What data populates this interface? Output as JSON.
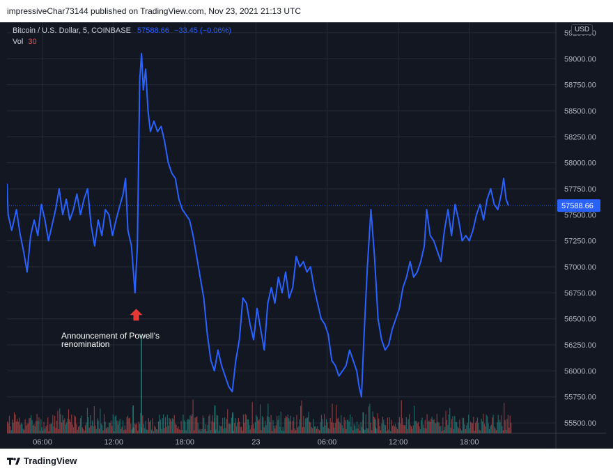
{
  "header": {
    "published_text": "impressiveChar73144 published on TradingView.com, Nov 23, 2021 21:13 UTC"
  },
  "legend": {
    "symbol": "Bitcoin / U.S. Dollar, 5, COINBASE",
    "last_price": "57588.66",
    "change": "−33.45 (−0.06%)",
    "vol_label": "Vol",
    "vol_value": "30"
  },
  "currency_button": "USD",
  "price_tag": "57588.66",
  "annotation": {
    "text": "Announcement of Powell's renomination",
    "icon": "arrow-up-icon"
  },
  "footer": {
    "brand": "TradingView",
    "logo_icon": "tradingview-logo-icon"
  },
  "colors": {
    "background": "#131722",
    "line": "#2962ff",
    "price_tag": "#2962ff",
    "arrow": "#e53935",
    "vol_up": "#26a69a",
    "vol_down": "#ef5350",
    "vol_value": "#ef5350"
  },
  "chart_data": {
    "type": "line",
    "ylim": [
      55400,
      59350
    ],
    "y_ticks": [
      55500,
      55750,
      56000,
      56250,
      56500,
      56750,
      57000,
      57250,
      57500,
      57750,
      58000,
      58250,
      58500,
      58750,
      59000,
      59250
    ],
    "y_tick_labels": [
      "55500.00",
      "55750.00",
      "56000.00",
      "56250.00",
      "56500.00",
      "56750.00",
      "57000.00",
      "57250.00",
      "57500.00",
      "57750.00",
      "58000.00",
      "58250.00",
      "58500.00",
      "58750.00",
      "59000.00",
      "59250.00"
    ],
    "x_domain_hours": [
      3,
      49.3
    ],
    "x_ticks": [
      {
        "label": "06:00",
        "hour": 6
      },
      {
        "label": "12:00",
        "hour": 12
      },
      {
        "label": "18:00",
        "hour": 18
      },
      {
        "label": "23",
        "hour": 24
      },
      {
        "label": "06:00",
        "hour": 30
      },
      {
        "label": "12:00",
        "hour": 36
      },
      {
        "label": "18:00",
        "hour": 42
      }
    ],
    "current_price": 57588.66,
    "series": [
      {
        "points": [
          [
            3.0,
            57800
          ],
          [
            3.1,
            57500
          ],
          [
            3.4,
            57350
          ],
          [
            3.8,
            57550
          ],
          [
            4.1,
            57320
          ],
          [
            4.4,
            57150
          ],
          [
            4.7,
            56950
          ],
          [
            5.0,
            57300
          ],
          [
            5.3,
            57450
          ],
          [
            5.6,
            57300
          ],
          [
            5.9,
            57600
          ],
          [
            6.2,
            57450
          ],
          [
            6.5,
            57250
          ],
          [
            6.8,
            57400
          ],
          [
            7.1,
            57550
          ],
          [
            7.4,
            57750
          ],
          [
            7.7,
            57500
          ],
          [
            8.0,
            57650
          ],
          [
            8.3,
            57450
          ],
          [
            8.6,
            57550
          ],
          [
            8.9,
            57700
          ],
          [
            9.2,
            57500
          ],
          [
            9.5,
            57650
          ],
          [
            9.8,
            57750
          ],
          [
            10.1,
            57400
          ],
          [
            10.4,
            57200
          ],
          [
            10.7,
            57450
          ],
          [
            11.0,
            57300
          ],
          [
            11.3,
            57550
          ],
          [
            11.6,
            57500
          ],
          [
            11.9,
            57300
          ],
          [
            12.2,
            57450
          ],
          [
            12.5,
            57580
          ],
          [
            12.8,
            57700
          ],
          [
            13.0,
            57850
          ],
          [
            13.2,
            57350
          ],
          [
            13.5,
            57200
          ],
          [
            13.8,
            56750
          ],
          [
            14.0,
            57200
          ],
          [
            14.2,
            58800
          ],
          [
            14.35,
            59050
          ],
          [
            14.5,
            58700
          ],
          [
            14.7,
            58900
          ],
          [
            14.9,
            58500
          ],
          [
            15.1,
            58300
          ],
          [
            15.4,
            58400
          ],
          [
            15.7,
            58300
          ],
          [
            16.0,
            58350
          ],
          [
            16.3,
            58200
          ],
          [
            16.6,
            58000
          ],
          [
            16.9,
            57900
          ],
          [
            17.2,
            57850
          ],
          [
            17.5,
            57650
          ],
          [
            17.8,
            57550
          ],
          [
            18.1,
            57500
          ],
          [
            18.4,
            57450
          ],
          [
            18.7,
            57300
          ],
          [
            19.0,
            57100
          ],
          [
            19.3,
            56900
          ],
          [
            19.6,
            56700
          ],
          [
            19.9,
            56350
          ],
          [
            20.2,
            56100
          ],
          [
            20.5,
            56000
          ],
          [
            20.8,
            56200
          ],
          [
            21.1,
            56050
          ],
          [
            21.4,
            55950
          ],
          [
            21.7,
            55850
          ],
          [
            22.0,
            55800
          ],
          [
            22.3,
            56100
          ],
          [
            22.6,
            56300
          ],
          [
            22.9,
            56700
          ],
          [
            23.2,
            56650
          ],
          [
            23.5,
            56450
          ],
          [
            23.8,
            56300
          ],
          [
            24.1,
            56600
          ],
          [
            24.4,
            56400
          ],
          [
            24.7,
            56200
          ],
          [
            25.0,
            56650
          ],
          [
            25.3,
            56800
          ],
          [
            25.6,
            56650
          ],
          [
            25.9,
            56900
          ],
          [
            26.2,
            56750
          ],
          [
            26.5,
            56950
          ],
          [
            26.8,
            56700
          ],
          [
            27.1,
            56800
          ],
          [
            27.4,
            57100
          ],
          [
            27.7,
            57000
          ],
          [
            28.0,
            57050
          ],
          [
            28.3,
            56950
          ],
          [
            28.6,
            57000
          ],
          [
            28.9,
            56800
          ],
          [
            29.2,
            56650
          ],
          [
            29.5,
            56500
          ],
          [
            29.8,
            56450
          ],
          [
            30.1,
            56350
          ],
          [
            30.4,
            56100
          ],
          [
            30.7,
            56050
          ],
          [
            31.0,
            55950
          ],
          [
            31.3,
            56000
          ],
          [
            31.6,
            56050
          ],
          [
            31.9,
            56200
          ],
          [
            32.2,
            56100
          ],
          [
            32.5,
            56000
          ],
          [
            32.7,
            55850
          ],
          [
            32.9,
            55750
          ],
          [
            33.1,
            56300
          ],
          [
            33.4,
            57000
          ],
          [
            33.7,
            57550
          ],
          [
            34.0,
            57100
          ],
          [
            34.3,
            56500
          ],
          [
            34.6,
            56300
          ],
          [
            34.9,
            56200
          ],
          [
            35.2,
            56250
          ],
          [
            35.5,
            56400
          ],
          [
            35.8,
            56500
          ],
          [
            36.1,
            56600
          ],
          [
            36.4,
            56800
          ],
          [
            36.7,
            56900
          ],
          [
            37.0,
            57050
          ],
          [
            37.3,
            56900
          ],
          [
            37.6,
            56950
          ],
          [
            37.9,
            57050
          ],
          [
            38.2,
            57200
          ],
          [
            38.4,
            57550
          ],
          [
            38.7,
            57300
          ],
          [
            39.0,
            57250
          ],
          [
            39.3,
            57150
          ],
          [
            39.6,
            57050
          ],
          [
            39.9,
            57350
          ],
          [
            40.2,
            57550
          ],
          [
            40.5,
            57300
          ],
          [
            40.8,
            57600
          ],
          [
            41.1,
            57450
          ],
          [
            41.4,
            57250
          ],
          [
            41.7,
            57300
          ],
          [
            42.0,
            57250
          ],
          [
            42.3,
            57350
          ],
          [
            42.6,
            57500
          ],
          [
            42.9,
            57600
          ],
          [
            43.2,
            57450
          ],
          [
            43.5,
            57650
          ],
          [
            43.8,
            57750
          ],
          [
            44.1,
            57600
          ],
          [
            44.4,
            57550
          ],
          [
            44.7,
            57700
          ],
          [
            44.9,
            57850
          ],
          [
            45.1,
            57650
          ],
          [
            45.3,
            57589
          ]
        ]
      }
    ],
    "volume": {
      "bars": [
        [
          14.3,
          7
        ],
        [
          13.6,
          2
        ],
        [
          20.5,
          2
        ],
        [
          22.0,
          1.5
        ],
        [
          33.0,
          1.5
        ],
        [
          34.0,
          1
        ]
      ],
      "baseline_note": ""
    }
  }
}
